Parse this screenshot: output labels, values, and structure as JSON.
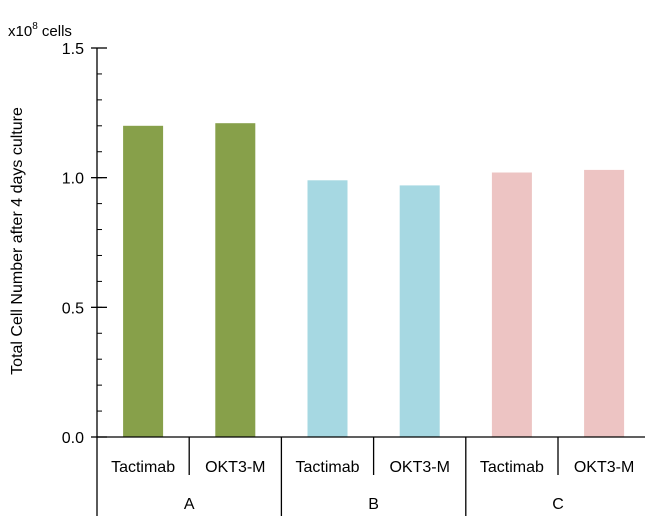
{
  "chart_data": {
    "type": "bar",
    "title": "",
    "unit_label": {
      "prefix": "x10",
      "exponent": "8",
      "suffix": " cells"
    },
    "ylabel": "Total Cell Number after 4 days culture",
    "xlabel": "",
    "ylim": [
      0,
      1.5
    ],
    "yticks": [
      {
        "value": 0.0,
        "label": "0.0"
      },
      {
        "value": 0.5,
        "label": "0.5"
      },
      {
        "value": 1.0,
        "label": "1.0"
      },
      {
        "value": 1.5,
        "label": "1.5"
      }
    ],
    "minor_tick_step": 0.1,
    "grid": false,
    "legend": "none",
    "groups": [
      {
        "label": "A",
        "color": "#87A04A",
        "bars": [
          {
            "category": "Tactimab",
            "value": 1.2
          },
          {
            "category": "OKT3-M",
            "value": 1.21
          }
        ]
      },
      {
        "label": "B",
        "color": "#A6D8E2",
        "bars": [
          {
            "category": "Tactimab",
            "value": 0.99
          },
          {
            "category": "OKT3-M",
            "value": 0.97
          }
        ]
      },
      {
        "label": "C",
        "color": "#EDC4C3",
        "bars": [
          {
            "category": "Tactimab",
            "value": 1.02
          },
          {
            "category": "OKT3-M",
            "value": 1.03
          }
        ]
      }
    ]
  }
}
